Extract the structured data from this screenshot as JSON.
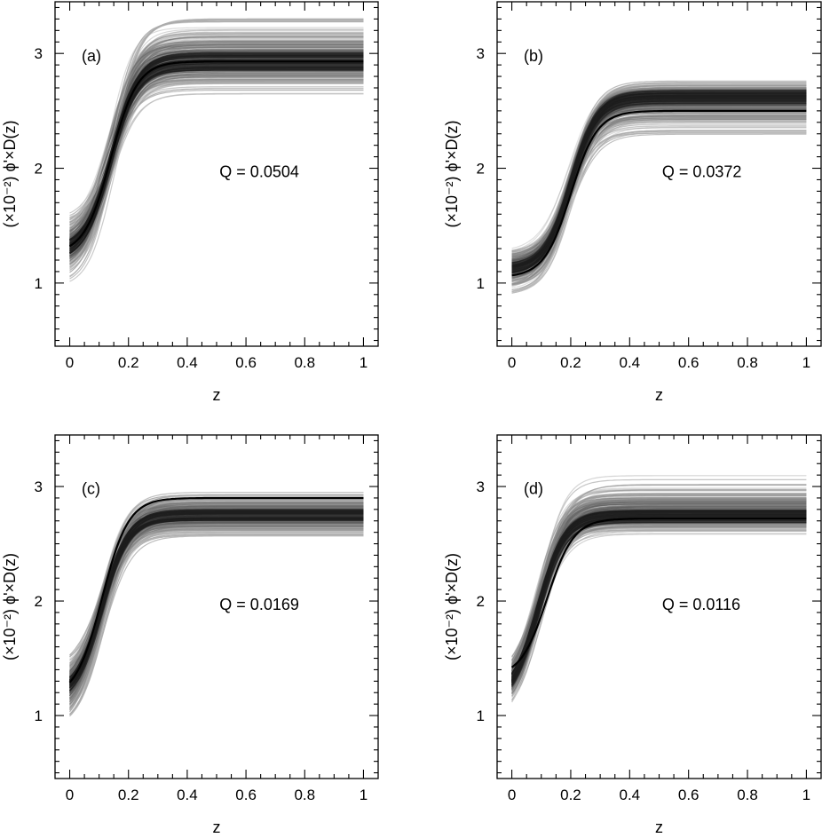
{
  "figure": {
    "panel_count": 4
  },
  "chart_data": [
    {
      "type": "line",
      "panel_label": "(a)",
      "annotation": "Q = 0.0504",
      "xlabel": "z",
      "ylabel": "(×10⁻²) ϕ'×D(z)",
      "xlim": [
        -0.05,
        1.05
      ],
      "ylim": [
        0.45,
        3.45
      ],
      "xticks": [
        "0",
        "0.2",
        "0.4",
        "0.6",
        "0.8",
        "1"
      ],
      "yticks": [
        "1",
        "2",
        "3"
      ],
      "ensemble": {
        "start_min": 0.92,
        "start_max": 1.6,
        "start_center": 1.25,
        "plateau_min": 2.6,
        "plateau_max": 3.42,
        "plateau_center": 2.93,
        "mid_min": 0.13,
        "mid_max": 0.15,
        "mid_center": 0.14
      },
      "best_fit": {
        "start": 1.25,
        "plateau": 2.93,
        "mid": 0.14
      }
    },
    {
      "type": "line",
      "panel_label": "(b)",
      "annotation": "Q = 0.0372",
      "xlabel": "z",
      "ylabel": "(×10⁻²) ϕ'×D(z)",
      "xlim": [
        -0.05,
        1.05
      ],
      "ylim": [
        0.45,
        3.45
      ],
      "xticks": [
        "0",
        "0.2",
        "0.4",
        "0.6",
        "0.8",
        "1"
      ],
      "yticks": [
        "1",
        "2",
        "3"
      ],
      "ensemble": {
        "start_min": 0.85,
        "start_max": 1.35,
        "start_center": 1.12,
        "plateau_min": 2.22,
        "plateau_max": 2.8,
        "plateau_center": 2.62,
        "mid_min": 0.19,
        "mid_max": 0.21,
        "mid_center": 0.2
      },
      "best_fit": {
        "start": 1.05,
        "plateau": 2.5,
        "mid": 0.2
      }
    },
    {
      "type": "line",
      "panel_label": "(c)",
      "annotation": "Q = 0.0169",
      "xlabel": "z",
      "ylabel": "(×10⁻²) ϕ'×D(z)",
      "xlim": [
        -0.05,
        1.05
      ],
      "ylim": [
        0.45,
        3.45
      ],
      "xticks": [
        "0",
        "0.2",
        "0.4",
        "0.6",
        "0.8",
        "1"
      ],
      "yticks": [
        "1",
        "2",
        "3"
      ],
      "ensemble": {
        "start_min": 0.78,
        "start_max": 1.48,
        "start_center": 1.15,
        "plateau_min": 2.52,
        "plateau_max": 3.0,
        "plateau_center": 2.75,
        "mid_min": 0.1,
        "mid_max": 0.12,
        "mid_center": 0.11
      },
      "best_fit": {
        "start": 1.15,
        "plateau": 2.9,
        "mid": 0.11
      }
    },
    {
      "type": "line",
      "panel_label": "(d)",
      "annotation": "Q = 0.0116",
      "xlabel": "z",
      "ylabel": "(×10⁻²) ϕ'×D(z)",
      "xlim": [
        -0.05,
        1.05
      ],
      "ylim": [
        0.45,
        3.45
      ],
      "xticks": [
        "0",
        "0.2",
        "0.4",
        "0.6",
        "0.8",
        "1"
      ],
      "yticks": [
        "1",
        "2",
        "3"
      ],
      "ensemble": {
        "start_min": 0.9,
        "start_max": 1.4,
        "start_center": 1.12,
        "plateau_min": 2.57,
        "plateau_max": 3.12,
        "plateau_center": 2.74,
        "mid_min": 0.08,
        "mid_max": 0.1,
        "mid_center": 0.09
      },
      "best_fit": {
        "start": 1.33,
        "plateau": 2.72,
        "mid": 0.12
      }
    }
  ]
}
